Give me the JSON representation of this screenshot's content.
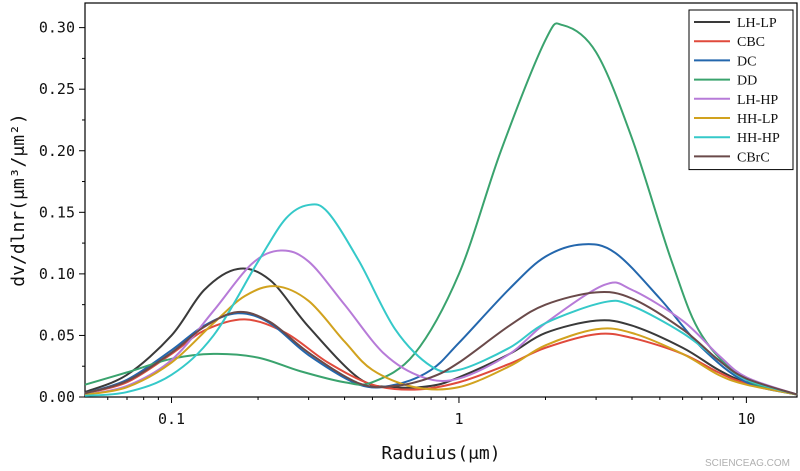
{
  "chart_data": {
    "type": "line",
    "xlabel": "Raduius(μm)",
    "ylabel": "dv/dlnr(μm³/μm²)",
    "xscale": "log",
    "xlim": [
      0.05,
      15
    ],
    "ylim": [
      0,
      0.32
    ],
    "xticks": [
      {
        "value": 0.1,
        "label": "0.1"
      },
      {
        "value": 1,
        "label": "1"
      },
      {
        "value": 10,
        "label": "10"
      }
    ],
    "yticks": [
      {
        "value": 0.0,
        "label": "0.00"
      },
      {
        "value": 0.05,
        "label": "0.05"
      },
      {
        "value": 0.1,
        "label": "0.10"
      },
      {
        "value": 0.15,
        "label": "0.15"
      },
      {
        "value": 0.2,
        "label": "0.20"
      },
      {
        "value": 0.25,
        "label": "0.25"
      },
      {
        "value": 0.3,
        "label": "0.30"
      }
    ],
    "grid": false,
    "legend_position": "top-right",
    "series": [
      {
        "name": "LH-LP",
        "color": "#3a3a3a",
        "x": [
          0.05,
          0.07,
          0.1,
          0.13,
          0.17,
          0.22,
          0.3,
          0.45,
          0.6,
          0.8,
          1,
          1.5,
          2,
          3,
          4,
          6,
          8,
          10,
          15
        ],
        "values": [
          0.004,
          0.018,
          0.05,
          0.087,
          0.104,
          0.095,
          0.057,
          0.015,
          0.008,
          0.009,
          0.016,
          0.035,
          0.052,
          0.062,
          0.058,
          0.04,
          0.022,
          0.012,
          0.002
        ]
      },
      {
        "name": "CBC",
        "color": "#e04a3c",
        "x": [
          0.05,
          0.07,
          0.1,
          0.13,
          0.18,
          0.25,
          0.35,
          0.5,
          0.7,
          1,
          1.5,
          2,
          3,
          4,
          6,
          8,
          10,
          15
        ],
        "values": [
          0.003,
          0.012,
          0.035,
          0.054,
          0.063,
          0.052,
          0.028,
          0.01,
          0.006,
          0.012,
          0.027,
          0.04,
          0.051,
          0.048,
          0.035,
          0.02,
          0.011,
          0.002
        ]
      },
      {
        "name": "DC",
        "color": "#2467ad",
        "x": [
          0.05,
          0.07,
          0.1,
          0.13,
          0.17,
          0.22,
          0.3,
          0.45,
          0.6,
          0.8,
          1,
          1.5,
          2,
          2.7,
          3.5,
          5,
          7,
          10,
          15
        ],
        "values": [
          0.003,
          0.014,
          0.038,
          0.058,
          0.068,
          0.06,
          0.034,
          0.01,
          0.01,
          0.022,
          0.044,
          0.088,
          0.114,
          0.124,
          0.117,
          0.08,
          0.04,
          0.012,
          0.002
        ]
      },
      {
        "name": "DD",
        "color": "#3aa36e",
        "x": [
          0.05,
          0.07,
          0.1,
          0.14,
          0.2,
          0.28,
          0.4,
          0.5,
          0.7,
          1,
          1.4,
          2,
          2.3,
          3,
          4,
          5.5,
          7,
          10,
          15
        ],
        "values": [
          0.01,
          0.02,
          0.031,
          0.035,
          0.032,
          0.021,
          0.012,
          0.012,
          0.035,
          0.1,
          0.2,
          0.29,
          0.302,
          0.28,
          0.21,
          0.11,
          0.05,
          0.014,
          0.002
        ]
      },
      {
        "name": "LH-HP",
        "color": "#b77bd8",
        "x": [
          0.05,
          0.07,
          0.1,
          0.14,
          0.19,
          0.24,
          0.3,
          0.4,
          0.55,
          0.75,
          1,
          1.5,
          2,
          3.2,
          4,
          6,
          8,
          10,
          15
        ],
        "values": [
          0.002,
          0.009,
          0.03,
          0.07,
          0.108,
          0.119,
          0.11,
          0.075,
          0.035,
          0.016,
          0.015,
          0.035,
          0.06,
          0.091,
          0.087,
          0.062,
          0.034,
          0.016,
          0.002
        ]
      },
      {
        "name": "HH-LP",
        "color": "#d1a21e",
        "x": [
          0.05,
          0.07,
          0.1,
          0.14,
          0.18,
          0.23,
          0.3,
          0.4,
          0.5,
          0.7,
          1,
          1.5,
          2,
          3,
          4,
          6,
          8,
          10,
          15
        ],
        "values": [
          0.002,
          0.008,
          0.028,
          0.06,
          0.082,
          0.09,
          0.078,
          0.045,
          0.022,
          0.008,
          0.008,
          0.025,
          0.042,
          0.055,
          0.052,
          0.035,
          0.018,
          0.01,
          0.002
        ]
      },
      {
        "name": "HH-HP",
        "color": "#35c9c9",
        "x": [
          0.05,
          0.07,
          0.1,
          0.14,
          0.2,
          0.25,
          0.3,
          0.35,
          0.45,
          0.6,
          0.8,
          1,
          1.5,
          2,
          3.2,
          4,
          6,
          8,
          10,
          15
        ],
        "values": [
          0.001,
          0.004,
          0.018,
          0.05,
          0.11,
          0.145,
          0.156,
          0.15,
          0.11,
          0.055,
          0.025,
          0.022,
          0.04,
          0.06,
          0.077,
          0.074,
          0.052,
          0.03,
          0.014,
          0.002
        ]
      },
      {
        "name": "CBrC",
        "color": "#6a4a4a",
        "x": [
          0.05,
          0.07,
          0.1,
          0.13,
          0.17,
          0.22,
          0.3,
          0.45,
          0.6,
          0.8,
          1,
          1.5,
          2,
          3,
          4,
          6,
          8,
          10,
          15
        ],
        "values": [
          0.003,
          0.013,
          0.036,
          0.057,
          0.069,
          0.061,
          0.036,
          0.011,
          0.009,
          0.016,
          0.028,
          0.058,
          0.075,
          0.085,
          0.08,
          0.055,
          0.03,
          0.015,
          0.002
        ]
      }
    ]
  },
  "watermark": "SCIENCEAG.COM"
}
